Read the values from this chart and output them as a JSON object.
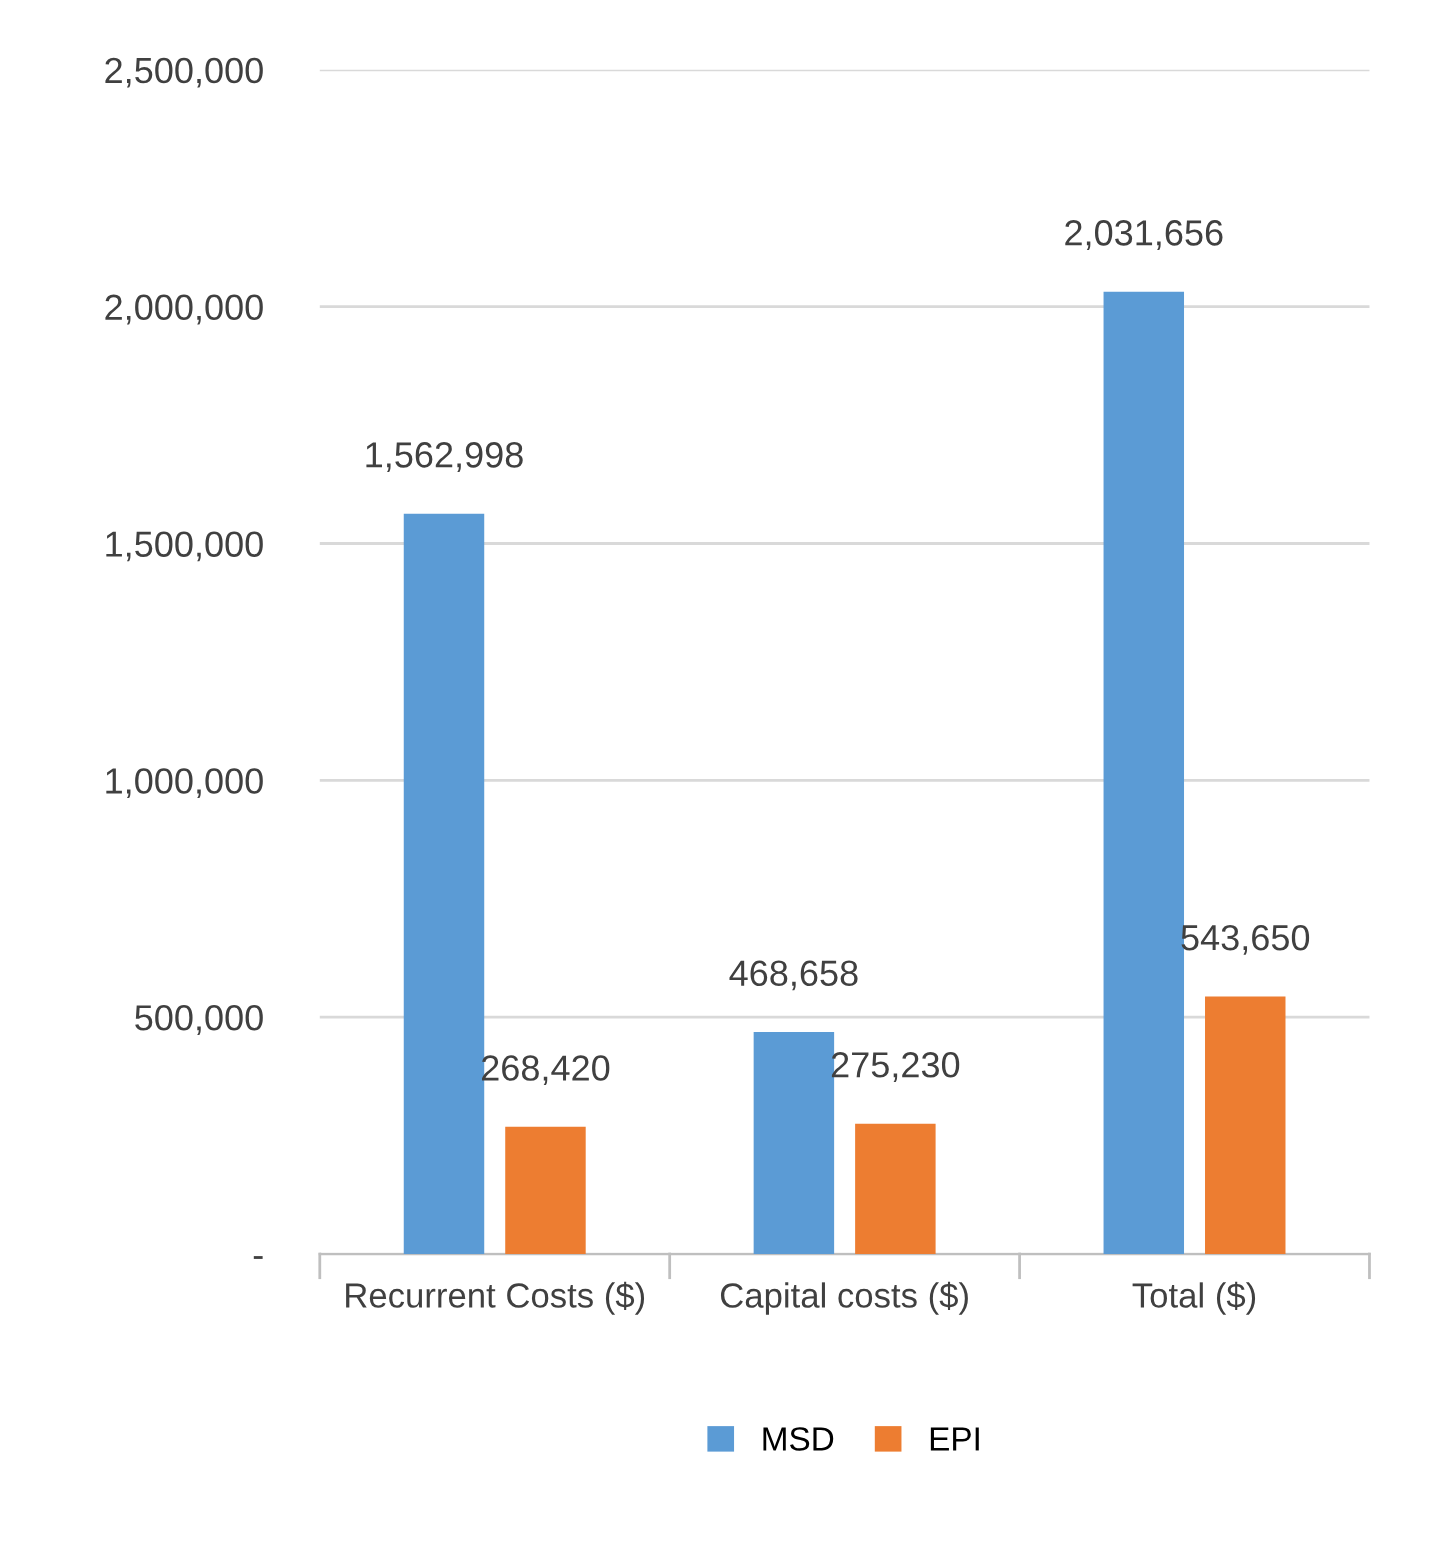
{
  "chart_data": {
    "type": "bar",
    "categories": [
      "Recurrent Costs ($)",
      "Capital costs ($)",
      "Total ($)"
    ],
    "series": [
      {
        "name": "MSD",
        "color": "#5b9bd5",
        "values": [
          1562998,
          468658,
          2031656
        ],
        "value_labels": [
          "1,562,998",
          "468,658",
          "2,031,656"
        ]
      },
      {
        "name": "EPI",
        "color": "#ed7d31",
        "values": [
          268420,
          275230,
          543650
        ],
        "value_labels": [
          "268,420",
          "275,230",
          "543,650"
        ]
      }
    ],
    "ylim": [
      0,
      2500000
    ],
    "yticks": [
      {
        "value": 0,
        "label": "-"
      },
      {
        "value": 500000,
        "label": "500,000"
      },
      {
        "value": 1000000,
        "label": "1,000,000"
      },
      {
        "value": 1500000,
        "label": "1,500,000"
      },
      {
        "value": 2000000,
        "label": "2,000,000"
      },
      {
        "value": 2500000,
        "label": "2,500,000"
      }
    ],
    "grid": "y",
    "legend": "bottom"
  }
}
